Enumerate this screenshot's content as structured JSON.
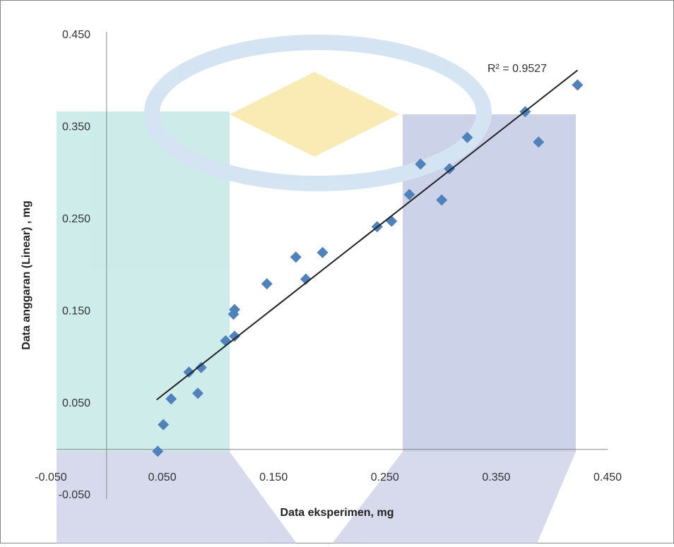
{
  "chart_data": {
    "type": "scatter",
    "xlabel": "Data eksperimen, mg",
    "ylabel": "Data anggaran (Linear) , mg",
    "annotation": "R² = 0.9527",
    "xlim": [
      -0.05,
      0.45
    ],
    "ylim": [
      -0.05,
      0.45
    ],
    "xticks": [
      {
        "value": -0.05,
        "label": "-0.050"
      },
      {
        "value": 0.05,
        "label": "0.050"
      },
      {
        "value": 0.15,
        "label": "0.150"
      },
      {
        "value": 0.25,
        "label": "0.250"
      },
      {
        "value": 0.35,
        "label": "0.350"
      },
      {
        "value": 0.45,
        "label": "0.450"
      }
    ],
    "yticks": [
      {
        "value": -0.05,
        "label": "-0.050"
      },
      {
        "value": 0.05,
        "label": "0.050"
      },
      {
        "value": 0.15,
        "label": "0.150"
      },
      {
        "value": 0.25,
        "label": "0.250"
      },
      {
        "value": 0.35,
        "label": "0.350"
      },
      {
        "value": 0.45,
        "label": "0.450"
      }
    ],
    "grid": false,
    "color": "#4f81bd",
    "x": [
      0.046,
      0.051,
      0.058,
      0.074,
      0.082,
      0.085,
      0.107,
      0.114,
      0.115,
      0.115,
      0.144,
      0.17,
      0.179,
      0.194,
      0.243,
      0.256,
      0.272,
      0.282,
      0.301,
      0.308,
      0.324,
      0.376,
      0.388,
      0.423
    ],
    "values": [
      -0.002,
      0.027,
      0.055,
      0.084,
      0.061,
      0.089,
      0.118,
      0.147,
      0.152,
      0.123,
      0.18,
      0.209,
      0.185,
      0.214,
      0.242,
      0.248,
      0.277,
      0.31,
      0.271,
      0.305,
      0.339,
      0.367,
      0.334,
      0.396
    ],
    "trendline": {
      "color": "#222222",
      "x": [
        0.045,
        0.423
      ],
      "values": [
        0.054,
        0.412
      ]
    }
  }
}
